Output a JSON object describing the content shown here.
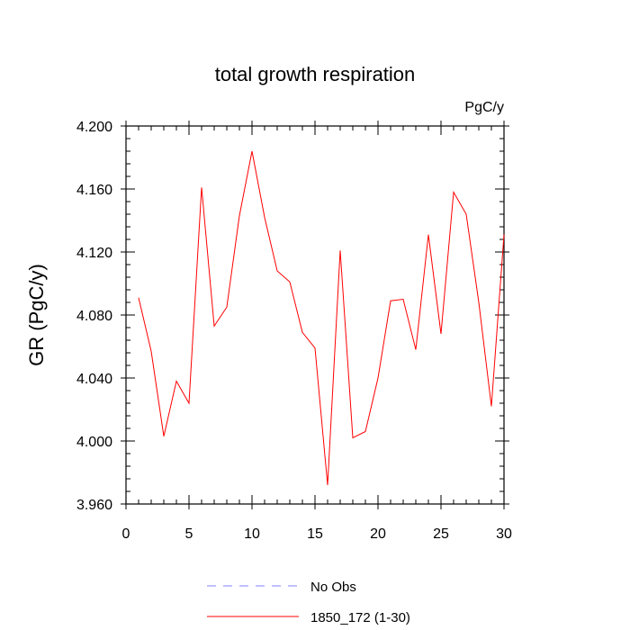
{
  "chart_data": {
    "type": "line",
    "title": "total growth respiration",
    "units": "PgC/y",
    "xlabel": "",
    "ylabel": "GR  (PgC/y)",
    "xlim": [
      0,
      30
    ],
    "ylim": [
      3.96,
      4.2
    ],
    "x_ticks": [
      0,
      5,
      10,
      15,
      20,
      25,
      30
    ],
    "y_ticks": [
      3.96,
      4.0,
      4.04,
      4.08,
      4.12,
      4.16,
      4.2
    ],
    "y_tick_labels": [
      "3.960",
      "4.000",
      "4.040",
      "4.080",
      "4.120",
      "4.160",
      "4.200"
    ],
    "legend_placement": "bottom-center",
    "legend": [
      {
        "label": "No Obs",
        "style": "dashed",
        "color": "#8080ff"
      },
      {
        "label": "1850_172 (1-30)",
        "style": "solid",
        "color": "#ff0000"
      }
    ],
    "series": [
      {
        "name": "1850_172 (1-30)",
        "color": "#ff0000",
        "x": [
          1,
          2,
          3,
          4,
          5,
          6,
          7,
          8,
          9,
          10,
          11,
          12,
          13,
          14,
          15,
          16,
          17,
          18,
          19,
          20,
          21,
          22,
          23,
          24,
          25,
          26,
          27,
          28,
          29,
          30
        ],
        "values": [
          4.091,
          4.057,
          4.003,
          4.038,
          4.024,
          4.161,
          4.073,
          4.085,
          4.143,
          4.184,
          4.142,
          4.108,
          4.101,
          4.069,
          4.059,
          3.972,
          4.121,
          4.002,
          4.006,
          4.04,
          4.089,
          4.09,
          4.058,
          4.131,
          4.068,
          4.158,
          4.144,
          4.088,
          4.022,
          4.131
        ]
      }
    ]
  }
}
